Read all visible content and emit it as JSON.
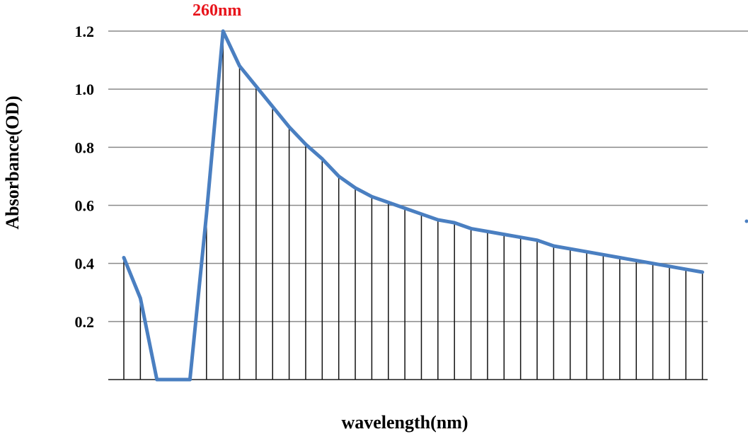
{
  "chart_data": {
    "type": "line",
    "ylabel": "Absorbance(OD)",
    "xlabel": "wavelength(nm)",
    "annotation": "260nm",
    "ylim": [
      0,
      1.2
    ],
    "yticks": [
      "0.2",
      "0.4",
      "0.6",
      "0.8",
      "1.0",
      "1.2"
    ],
    "grid": true,
    "line_color": "#4a7fc1",
    "annotation_color": "#e8141b",
    "series": [
      {
        "values": [
          0.42,
          0.28,
          0.0,
          0.0,
          0.0,
          0.57,
          1.2,
          1.08,
          1.01,
          0.94,
          0.87,
          0.81,
          0.76,
          0.7,
          0.66,
          0.63,
          0.61,
          0.59,
          0.57,
          0.55,
          0.54,
          0.52,
          0.51,
          0.5,
          0.49,
          0.48,
          0.46,
          0.45,
          0.44,
          0.43,
          0.42,
          0.41,
          0.4,
          0.39,
          0.38,
          0.37
        ]
      }
    ]
  }
}
